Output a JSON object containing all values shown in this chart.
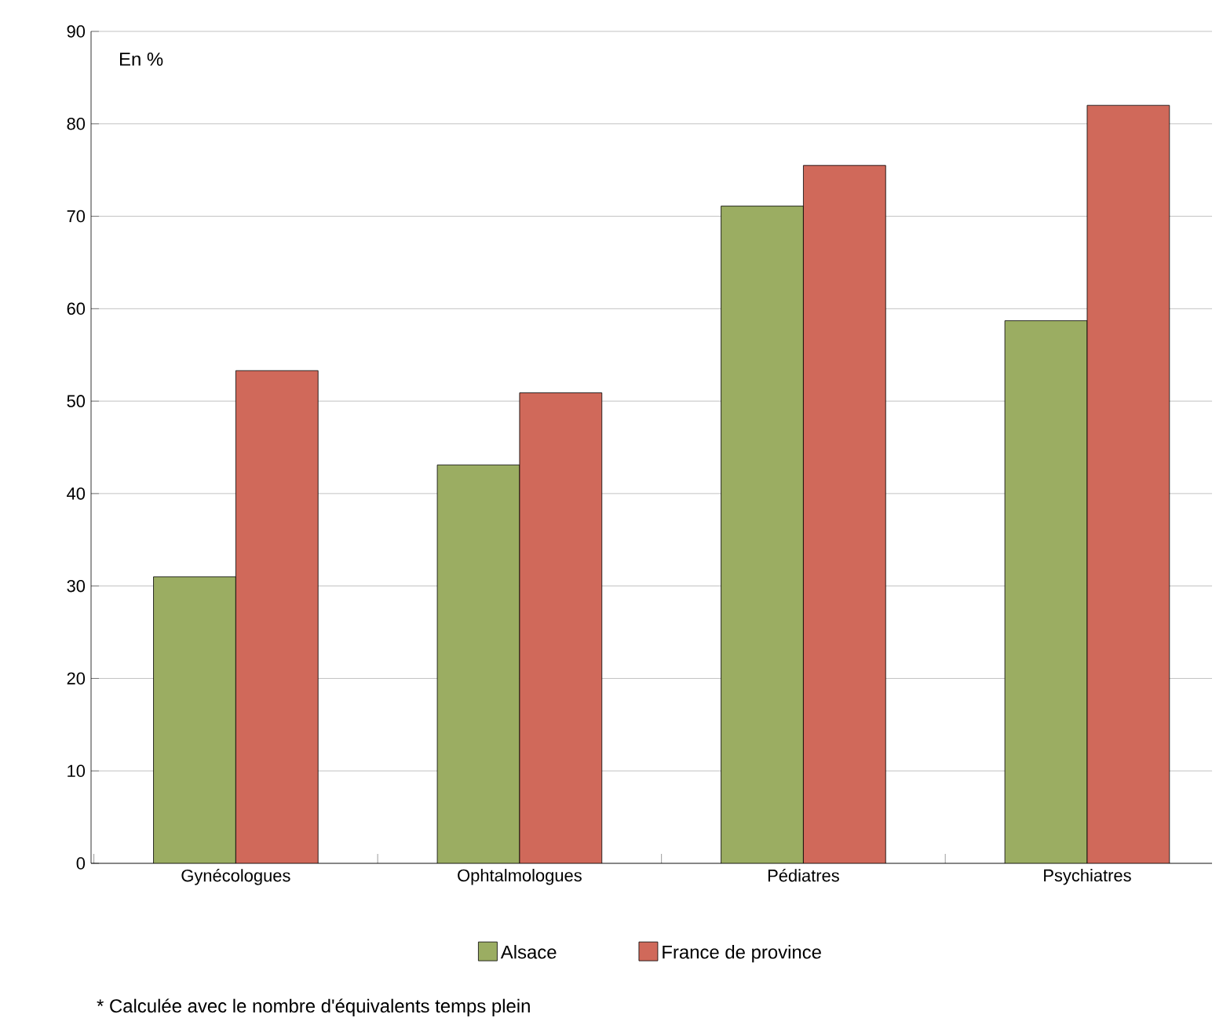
{
  "chart_data": {
    "type": "bar",
    "categories": [
      "Gynécologues",
      "Ophtalmologues",
      "Pédiatres",
      "Psychiatres"
    ],
    "series": [
      {
        "name": "Alsace",
        "color": "#9bad62",
        "values": [
          31.0,
          43.1,
          71.1,
          58.7
        ]
      },
      {
        "name": "France de province",
        "color": "#d0695a",
        "values": [
          53.3,
          50.9,
          75.5,
          82.0
        ]
      }
    ],
    "ylim": [
      0,
      90
    ],
    "yticks": [
      0,
      10,
      20,
      30,
      40,
      50,
      60,
      70,
      80,
      90
    ],
    "grid": "y",
    "legend": "bottom",
    "annotations": [
      "En %",
      "* Calculée avec le nombre d'équivalents temps plein"
    ]
  }
}
